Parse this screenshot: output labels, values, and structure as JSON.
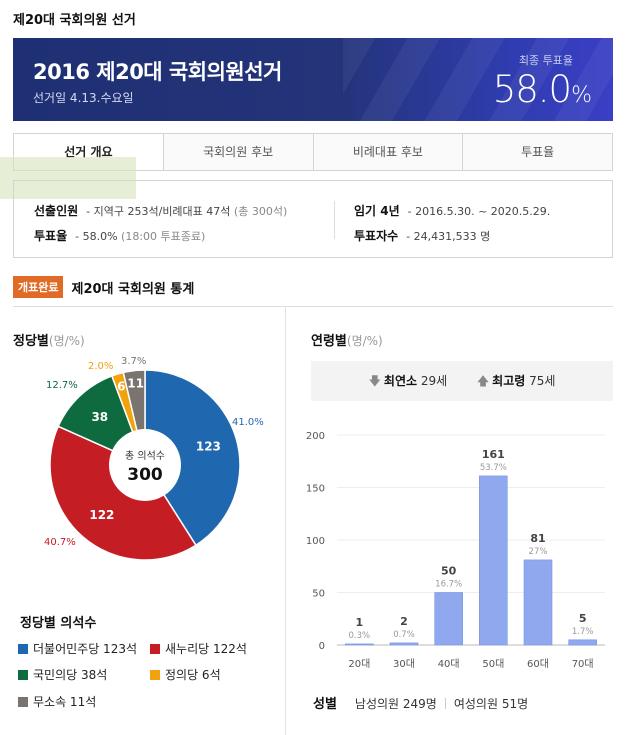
{
  "page": {
    "title": "제20대 국회의원 선거"
  },
  "banner": {
    "title": "2016 제20대 국회의원선거",
    "date": "선거일 4.13.수요일",
    "turnout_label": "최종 투표율",
    "turnout_value": "58.0",
    "turnout_unit": "%"
  },
  "tabs": [
    "선거 개요",
    "국회의원 후보",
    "비례대표 후보",
    "투표율"
  ],
  "summary": {
    "seats_label": "선출인원",
    "seats_value": "- 지역구 253석/비례대표 47석",
    "seats_total": "(총 300석)",
    "turnout_label": "투표율",
    "turnout_value": "- 58.0%",
    "turnout_note": "(18:00 투표종료)",
    "term_label": "임기 4년",
    "term_value": "- 2016.5.30. ~ 2020.5.29.",
    "voters_label": "투표자수",
    "voters_value": "- 24,431,533 명"
  },
  "stats": {
    "badge": "개표완료",
    "title": "제20대 국회의원 통계"
  },
  "party_section": {
    "title": "정당별",
    "unit": "(명/%)",
    "center_label": "총 의석수",
    "center_value": "300"
  },
  "legend_title": "정당별 의석수",
  "age_section": {
    "title": "연령별",
    "unit": "(명/%)",
    "youngest_label": "최연소",
    "youngest_value": "29세",
    "oldest_label": "최고령",
    "oldest_value": "75세"
  },
  "gender": {
    "label": "성별",
    "male": "남성의원 249명",
    "female": "여성의원 51명"
  },
  "colors": {
    "banner": "#24347a",
    "badge": "#e06a26",
    "bar": "#8fa8ee"
  },
  "chart_data": [
    {
      "type": "pie",
      "title": "정당별",
      "series": [
        {
          "name": "더불어민주당",
          "value": 123,
          "percent": "41.0%",
          "legend": "더불어민주당 123석",
          "color": "#1f67ae"
        },
        {
          "name": "새누리당",
          "value": 122,
          "percent": "40.7%",
          "legend": "새누리당 122석",
          "color": "#c51d24"
        },
        {
          "name": "국민의당",
          "value": 38,
          "percent": "12.7%",
          "legend": "국민의당 38석",
          "color": "#0e6b3f"
        },
        {
          "name": "정의당",
          "value": 6,
          "percent": "2.0%",
          "legend": "정의당 6석",
          "color": "#f2a20c"
        },
        {
          "name": "무소속",
          "value": 11,
          "percent": "3.7%",
          "legend": "무소속 11석",
          "color": "#7a7470"
        }
      ]
    },
    {
      "type": "bar",
      "title": "연령별",
      "categories": [
        "20대",
        "30대",
        "40대",
        "50대",
        "60대",
        "70대"
      ],
      "values": [
        1,
        2,
        50,
        161,
        81,
        5
      ],
      "percents": [
        "0.3%",
        "0.7%",
        "16.7%",
        "53.7%",
        "27%",
        "1.7%"
      ],
      "ylim": [
        0,
        200
      ],
      "yticks": [
        0,
        50,
        100,
        150,
        200
      ]
    }
  ]
}
